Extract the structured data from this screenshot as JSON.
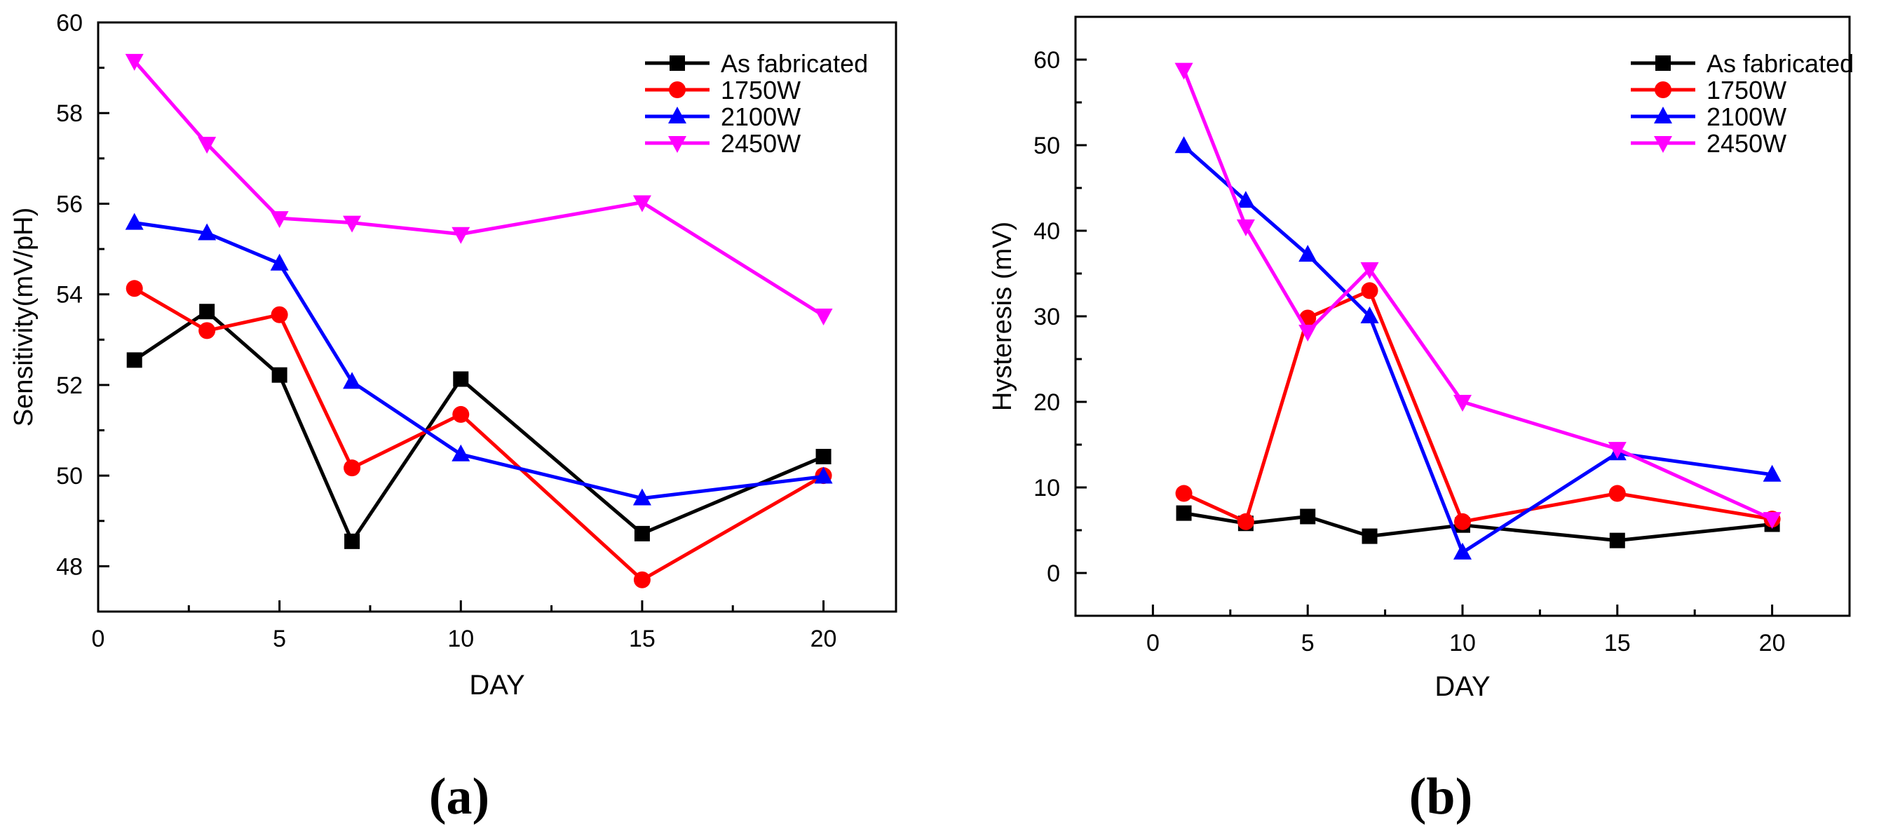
{
  "chart_data": [
    {
      "type": "line",
      "panel_label": "(a)",
      "xlabel": "DAY",
      "ylabel": "Sensitivity(mV/pH)",
      "xlim": [
        0,
        22
      ],
      "ylim": [
        47,
        60
      ],
      "xticks": [
        0,
        5,
        10,
        15,
        20
      ],
      "yticks": [
        48,
        50,
        52,
        54,
        56,
        58,
        60
      ],
      "grid": false,
      "legend_position": "top-right",
      "x": [
        1,
        3,
        5,
        7,
        10,
        15,
        20
      ],
      "series": [
        {
          "name": "As fabricated",
          "color": "#000000",
          "marker": "square",
          "values": [
            52.55,
            53.62,
            52.22,
            48.55,
            52.13,
            48.72,
            50.42
          ]
        },
        {
          "name": "1750W",
          "color": "#ff0000",
          "marker": "circle",
          "values": [
            54.13,
            53.2,
            53.55,
            50.17,
            51.35,
            47.7,
            50.0
          ]
        },
        {
          "name": "2100W",
          "color": "#0000ff",
          "marker": "triangle-up",
          "values": [
            55.58,
            55.35,
            54.68,
            52.07,
            50.47,
            49.5,
            49.98
          ]
        },
        {
          "name": "2450W",
          "color": "#ff00ff",
          "marker": "triangle-down",
          "values": [
            59.15,
            57.32,
            55.68,
            55.58,
            55.33,
            56.03,
            53.53
          ]
        }
      ]
    },
    {
      "type": "line",
      "panel_label": "(b)",
      "xlabel": "DAY",
      "ylabel": "Hysteresis (mV)",
      "xlim": [
        -2.5,
        22.5
      ],
      "ylim": [
        -5,
        65
      ],
      "xticks": [
        0,
        5,
        10,
        15,
        20
      ],
      "yticks": [
        0,
        10,
        20,
        30,
        40,
        50,
        60
      ],
      "grid": false,
      "legend_position": "top-right",
      "x": [
        1,
        3,
        5,
        7,
        10,
        15,
        20
      ],
      "series": [
        {
          "name": "As fabricated",
          "color": "#000000",
          "marker": "square",
          "values": [
            7.0,
            5.8,
            6.6,
            4.3,
            5.6,
            3.8,
            5.7
          ]
        },
        {
          "name": "1750W",
          "color": "#ff0000",
          "marker": "circle",
          "values": [
            9.3,
            6.0,
            29.8,
            33.0,
            6.0,
            9.3,
            6.3
          ]
        },
        {
          "name": "2100W",
          "color": "#0000ff",
          "marker": "triangle-up",
          "values": [
            49.9,
            43.5,
            37.2,
            30.0,
            2.4,
            14.0,
            11.5
          ]
        },
        {
          "name": "2450W",
          "color": "#ff00ff",
          "marker": "triangle-down",
          "values": [
            58.8,
            40.5,
            28.2,
            35.5,
            20.0,
            14.5,
            6.3
          ]
        }
      ]
    }
  ]
}
